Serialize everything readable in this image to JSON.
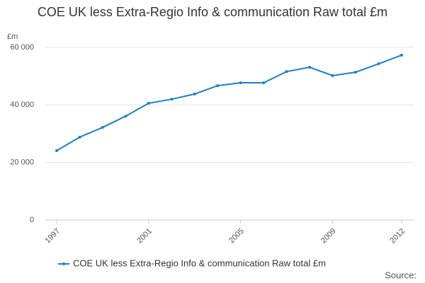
{
  "chart_data": {
    "type": "line",
    "title": "COE UK less Extra-Regio Info & communication Raw total £m",
    "y_unit": "£m",
    "source": "Source:",
    "x": [
      1997,
      1998,
      1999,
      2000,
      2001,
      2002,
      2003,
      2004,
      2005,
      2006,
      2007,
      2008,
      2009,
      2010,
      2011,
      2012
    ],
    "xlim": [
      1997,
      2012
    ],
    "xticks": [
      1997,
      2001,
      2005,
      2009,
      2012
    ],
    "series": [
      {
        "name": "COE UK less Extra-Regio Info & communication Raw total £m",
        "color": "#1f7fbf",
        "values": [
          24100,
          28800,
          32200,
          36100,
          40600,
          42000,
          43800,
          46700,
          47700,
          47700,
          51600,
          53100,
          50200,
          51400,
          54300,
          57300
        ]
      }
    ],
    "ylim": [
      0,
      60000
    ],
    "yticks": [
      0,
      {
        "value": 20000,
        "label": "20 000"
      },
      {
        "value": 40000,
        "label": "40 000"
      },
      {
        "value": 60000,
        "label": "60 000"
      }
    ],
    "grid": true
  }
}
